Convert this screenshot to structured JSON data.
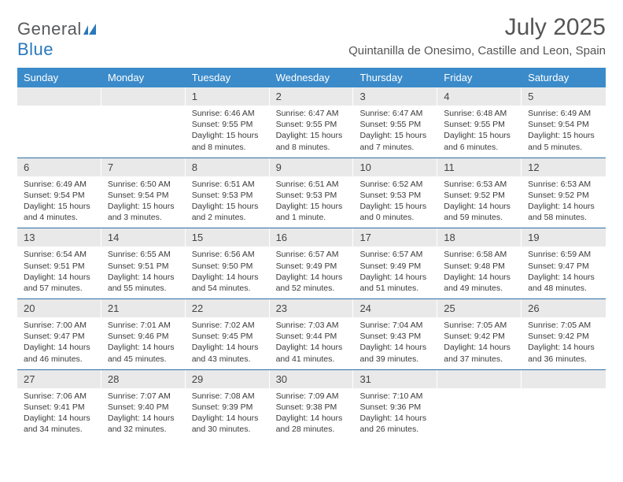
{
  "brand": {
    "part1": "General",
    "part2": "Blue"
  },
  "title": "July 2025",
  "location": "Quintanilla de Onesimo, Castille and Leon, Spain",
  "colors": {
    "header_bg": "#3b8bca",
    "row_border": "#2d6fa8",
    "daynum_bg": "#e9e9e9",
    "text": "#3a3a3a",
    "title_text": "#555555",
    "brand_gray": "#58595b",
    "brand_blue": "#2a78bd"
  },
  "columns": [
    "Sunday",
    "Monday",
    "Tuesday",
    "Wednesday",
    "Thursday",
    "Friday",
    "Saturday"
  ],
  "weeks": [
    [
      {
        "day": "",
        "sunrise": "",
        "sunset": "",
        "daylight": ""
      },
      {
        "day": "",
        "sunrise": "",
        "sunset": "",
        "daylight": ""
      },
      {
        "day": "1",
        "sunrise": "6:46 AM",
        "sunset": "9:55 PM",
        "daylight": "15 hours and 8 minutes."
      },
      {
        "day": "2",
        "sunrise": "6:47 AM",
        "sunset": "9:55 PM",
        "daylight": "15 hours and 8 minutes."
      },
      {
        "day": "3",
        "sunrise": "6:47 AM",
        "sunset": "9:55 PM",
        "daylight": "15 hours and 7 minutes."
      },
      {
        "day": "4",
        "sunrise": "6:48 AM",
        "sunset": "9:55 PM",
        "daylight": "15 hours and 6 minutes."
      },
      {
        "day": "5",
        "sunrise": "6:49 AM",
        "sunset": "9:54 PM",
        "daylight": "15 hours and 5 minutes."
      }
    ],
    [
      {
        "day": "6",
        "sunrise": "6:49 AM",
        "sunset": "9:54 PM",
        "daylight": "15 hours and 4 minutes."
      },
      {
        "day": "7",
        "sunrise": "6:50 AM",
        "sunset": "9:54 PM",
        "daylight": "15 hours and 3 minutes."
      },
      {
        "day": "8",
        "sunrise": "6:51 AM",
        "sunset": "9:53 PM",
        "daylight": "15 hours and 2 minutes."
      },
      {
        "day": "9",
        "sunrise": "6:51 AM",
        "sunset": "9:53 PM",
        "daylight": "15 hours and 1 minute."
      },
      {
        "day": "10",
        "sunrise": "6:52 AM",
        "sunset": "9:53 PM",
        "daylight": "15 hours and 0 minutes."
      },
      {
        "day": "11",
        "sunrise": "6:53 AM",
        "sunset": "9:52 PM",
        "daylight": "14 hours and 59 minutes."
      },
      {
        "day": "12",
        "sunrise": "6:53 AM",
        "sunset": "9:52 PM",
        "daylight": "14 hours and 58 minutes."
      }
    ],
    [
      {
        "day": "13",
        "sunrise": "6:54 AM",
        "sunset": "9:51 PM",
        "daylight": "14 hours and 57 minutes."
      },
      {
        "day": "14",
        "sunrise": "6:55 AM",
        "sunset": "9:51 PM",
        "daylight": "14 hours and 55 minutes."
      },
      {
        "day": "15",
        "sunrise": "6:56 AM",
        "sunset": "9:50 PM",
        "daylight": "14 hours and 54 minutes."
      },
      {
        "day": "16",
        "sunrise": "6:57 AM",
        "sunset": "9:49 PM",
        "daylight": "14 hours and 52 minutes."
      },
      {
        "day": "17",
        "sunrise": "6:57 AM",
        "sunset": "9:49 PM",
        "daylight": "14 hours and 51 minutes."
      },
      {
        "day": "18",
        "sunrise": "6:58 AM",
        "sunset": "9:48 PM",
        "daylight": "14 hours and 49 minutes."
      },
      {
        "day": "19",
        "sunrise": "6:59 AM",
        "sunset": "9:47 PM",
        "daylight": "14 hours and 48 minutes."
      }
    ],
    [
      {
        "day": "20",
        "sunrise": "7:00 AM",
        "sunset": "9:47 PM",
        "daylight": "14 hours and 46 minutes."
      },
      {
        "day": "21",
        "sunrise": "7:01 AM",
        "sunset": "9:46 PM",
        "daylight": "14 hours and 45 minutes."
      },
      {
        "day": "22",
        "sunrise": "7:02 AM",
        "sunset": "9:45 PM",
        "daylight": "14 hours and 43 minutes."
      },
      {
        "day": "23",
        "sunrise": "7:03 AM",
        "sunset": "9:44 PM",
        "daylight": "14 hours and 41 minutes."
      },
      {
        "day": "24",
        "sunrise": "7:04 AM",
        "sunset": "9:43 PM",
        "daylight": "14 hours and 39 minutes."
      },
      {
        "day": "25",
        "sunrise": "7:05 AM",
        "sunset": "9:42 PM",
        "daylight": "14 hours and 37 minutes."
      },
      {
        "day": "26",
        "sunrise": "7:05 AM",
        "sunset": "9:42 PM",
        "daylight": "14 hours and 36 minutes."
      }
    ],
    [
      {
        "day": "27",
        "sunrise": "7:06 AM",
        "sunset": "9:41 PM",
        "daylight": "14 hours and 34 minutes."
      },
      {
        "day": "28",
        "sunrise": "7:07 AM",
        "sunset": "9:40 PM",
        "daylight": "14 hours and 32 minutes."
      },
      {
        "day": "29",
        "sunrise": "7:08 AM",
        "sunset": "9:39 PM",
        "daylight": "14 hours and 30 minutes."
      },
      {
        "day": "30",
        "sunrise": "7:09 AM",
        "sunset": "9:38 PM",
        "daylight": "14 hours and 28 minutes."
      },
      {
        "day": "31",
        "sunrise": "7:10 AM",
        "sunset": "9:36 PM",
        "daylight": "14 hours and 26 minutes."
      },
      {
        "day": "",
        "sunrise": "",
        "sunset": "",
        "daylight": ""
      },
      {
        "day": "",
        "sunrise": "",
        "sunset": "",
        "daylight": ""
      }
    ]
  ]
}
